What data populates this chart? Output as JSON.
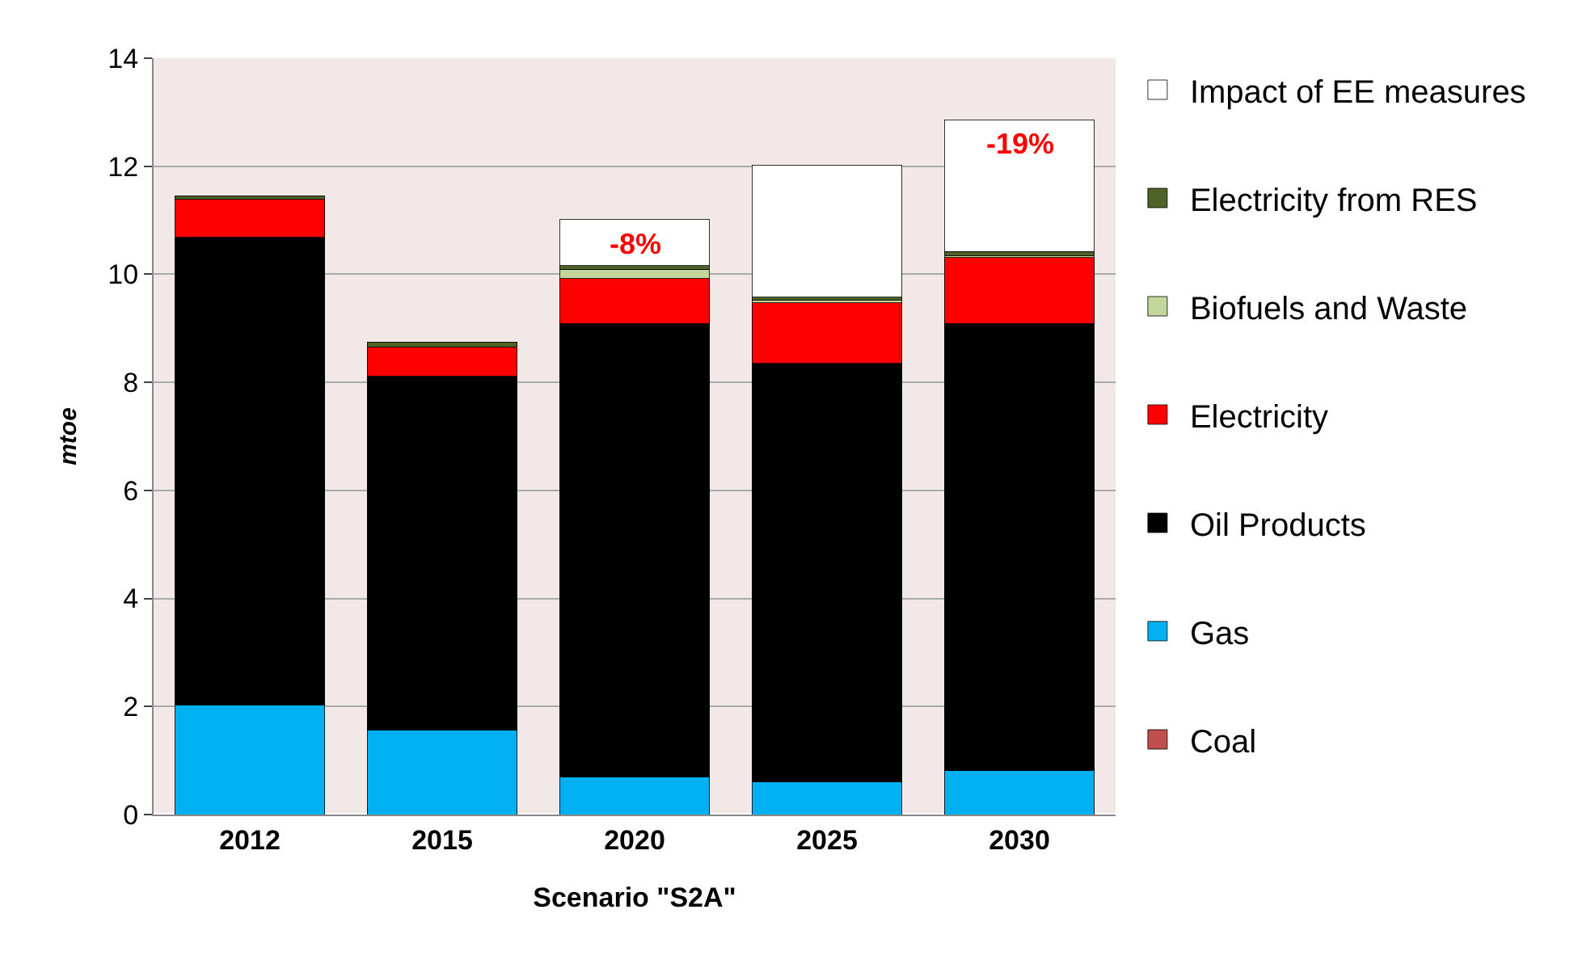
{
  "chart_data": {
    "type": "bar",
    "stacked": true,
    "categories": [
      "2012",
      "2015",
      "2020",
      "2025",
      "2030"
    ],
    "xlabel": "Scenario \"S2A\"",
    "ylabel": "mtoe",
    "ylim": [
      0,
      14
    ],
    "yticks": [
      0,
      2,
      4,
      6,
      8,
      10,
      12,
      14
    ],
    "grid": "y",
    "legend": "right",
    "series": [
      {
        "name": "Coal",
        "color": "#c0504d",
        "values": [
          0,
          0,
          0,
          0,
          0
        ]
      },
      {
        "name": "Gas",
        "color": "#00b0f0",
        "values": [
          2.03,
          1.56,
          0.69,
          0.6,
          0.81
        ]
      },
      {
        "name": "Oil Products",
        "color": "#000000",
        "values": [
          8.65,
          6.55,
          8.4,
          7.75,
          8.28
        ]
      },
      {
        "name": "Electricity",
        "color": "#ff0000",
        "values": [
          0.71,
          0.54,
          0.83,
          1.12,
          1.22
        ]
      },
      {
        "name": "Biofuels and Waste",
        "color": "#c3d69b",
        "values": [
          0,
          0,
          0.17,
          0.05,
          0.03
        ]
      },
      {
        "name": "Electricity from RES",
        "color": "#4f6228",
        "values": [
          0.06,
          0.1,
          0.07,
          0.06,
          0.08
        ]
      },
      {
        "name": "Impact of EE measures",
        "color": "#ffffff",
        "values": [
          null,
          null,
          0.85,
          2.44,
          2.44
        ]
      }
    ],
    "annotations": [
      {
        "text": "-8%",
        "x": "2020",
        "y": 11.01
      },
      {
        "text": "-19%",
        "x": "2030",
        "y": 12.86
      }
    ]
  }
}
